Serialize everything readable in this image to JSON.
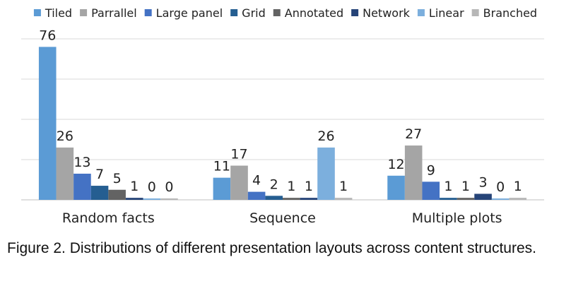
{
  "caption": "Figure 2. Distributions of different presentation layouts across content structures.",
  "chart_data": {
    "type": "bar",
    "title": "",
    "xlabel": "",
    "ylabel": "",
    "ylim": [
      0,
      80
    ],
    "grid": true,
    "legend_position": "top",
    "categories": [
      "Random facts",
      "Sequence",
      "Multiple plots"
    ],
    "series": [
      {
        "name": "Tiled",
        "color": "#5b9bd5",
        "values": [
          76,
          11,
          12
        ]
      },
      {
        "name": "Parrallel",
        "color": "#a5a5a5",
        "values": [
          26,
          17,
          27
        ]
      },
      {
        "name": "Large panel",
        "color": "#4472c4",
        "values": [
          13,
          4,
          9
        ]
      },
      {
        "name": "Grid",
        "color": "#255e91",
        "values": [
          7,
          2,
          1
        ]
      },
      {
        "name": "Annotated",
        "color": "#636363",
        "values": [
          5,
          1,
          1
        ]
      },
      {
        "name": "Network",
        "color": "#264478",
        "values": [
          1,
          1,
          3
        ]
      },
      {
        "name": "Linear",
        "color": "#7cafdd",
        "values": [
          0,
          26,
          0
        ]
      },
      {
        "name": "Branched",
        "color": "#b7b7b7",
        "values": [
          0,
          1,
          1
        ]
      }
    ]
  }
}
